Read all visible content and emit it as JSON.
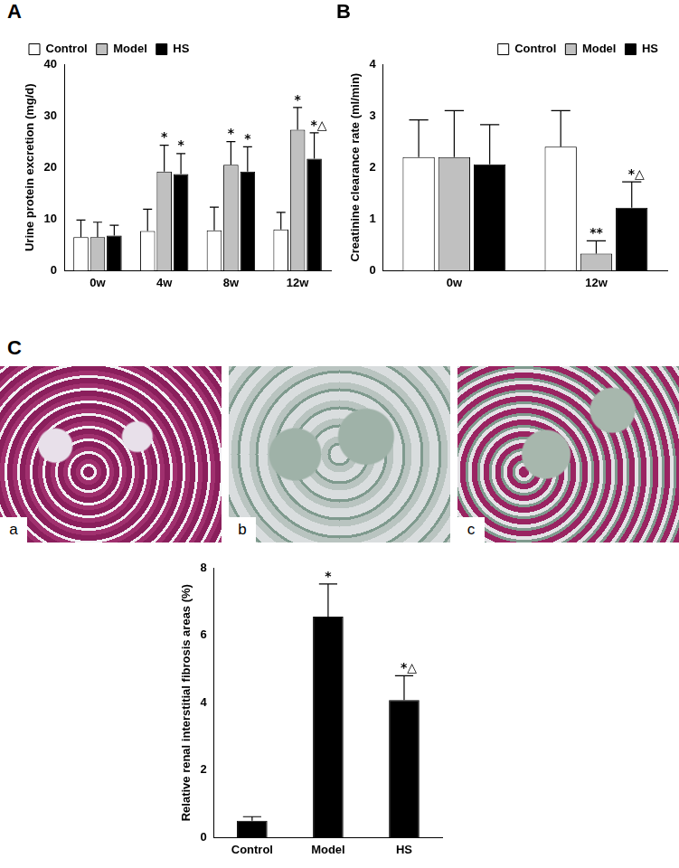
{
  "chart_data": [
    {
      "type": "bar",
      "panel": "A",
      "y_label": "Urine protein excretion (mg/d)",
      "categories": [
        "0w",
        "4w",
        "8w",
        "12w"
      ],
      "series": [
        {
          "name": "Control",
          "color": "#ffffff",
          "values": [
            6.5,
            7.7,
            7.8,
            8.0
          ],
          "errors": [
            3.3,
            4.2,
            4.5,
            3.3
          ],
          "annotations": [
            null,
            null,
            null,
            null
          ]
        },
        {
          "name": "Model",
          "color": "#c0c0c0",
          "values": [
            6.5,
            19.2,
            20.5,
            27.3
          ],
          "errors": [
            2.9,
            5.1,
            4.5,
            4.3
          ],
          "annotations": [
            null,
            "*",
            "*",
            "*"
          ]
        },
        {
          "name": "HS",
          "color": "#000000",
          "values": [
            6.8,
            18.7,
            19.2,
            21.7
          ],
          "errors": [
            2.0,
            4.0,
            4.8,
            5.0
          ],
          "annotations": [
            null,
            "*",
            "*",
            "*△"
          ]
        }
      ],
      "ylim": [
        0,
        40
      ],
      "yticks": [
        0,
        10,
        20,
        30,
        40
      ],
      "grid": false,
      "legend": "top-left"
    },
    {
      "type": "bar",
      "panel": "B",
      "y_label": "Creatinine clearance rate (ml/min)",
      "categories": [
        "0w",
        "12w"
      ],
      "series": [
        {
          "name": "Control",
          "color": "#ffffff",
          "values": [
            2.2,
            2.4
          ],
          "errors": [
            0.72,
            0.7
          ],
          "annotations": [
            null,
            null
          ]
        },
        {
          "name": "Model",
          "color": "#c0c0c0",
          "values": [
            2.2,
            0.33
          ],
          "errors": [
            0.9,
            0.25
          ],
          "annotations": [
            null,
            "**"
          ]
        },
        {
          "name": "HS",
          "color": "#000000",
          "values": [
            2.06,
            1.22
          ],
          "errors": [
            0.77,
            0.5
          ],
          "annotations": [
            null,
            "*△"
          ]
        }
      ],
      "ylim": [
        0,
        4
      ],
      "yticks": [
        0,
        1,
        2,
        3,
        4
      ],
      "grid": false,
      "legend": "top-right"
    },
    {
      "type": "bar",
      "y_label": "Relative renal interstitial fibrosis areas (%)",
      "categories": [
        "Control",
        "Model",
        "HS"
      ],
      "values": [
        0.5,
        6.55,
        4.08
      ],
      "errors": [
        0.12,
        0.97,
        0.72
      ],
      "annotations": [
        null,
        "*",
        "*△"
      ],
      "color": "#000000",
      "ylim": [
        0,
        8
      ],
      "yticks": [
        0,
        2,
        4,
        6,
        8
      ],
      "grid": false
    }
  ],
  "micrographs": {
    "panel": "C",
    "labels": [
      "a",
      "b",
      "c"
    ]
  }
}
